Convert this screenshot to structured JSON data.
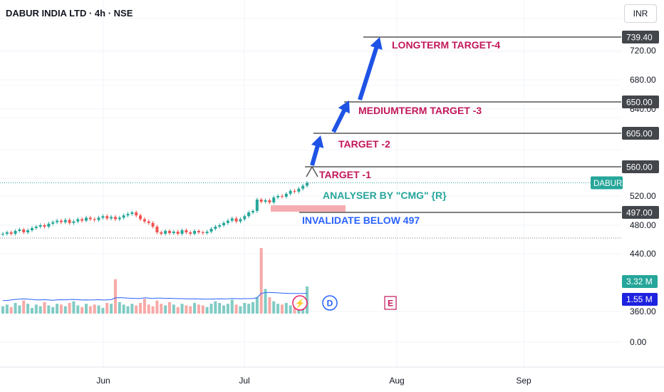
{
  "header": {
    "title": "DABUR INDIA LTD · 4h · NSE",
    "currency_button": "INR"
  },
  "colors": {
    "up": "#26a69a",
    "down": "#ef5350",
    "target_text": "#c2185b",
    "analyser_text": "#26a69a",
    "invalidate_text": "#2962ff",
    "arrow_blue": "#1e53e5",
    "level_line": "#555555",
    "price_tag_bg": "#43464b",
    "symbol_tag_bg": "#26a69a",
    "volume_ma": "#2962ff"
  },
  "event_markers": [
    {
      "name": "dividend-marker",
      "glyph": "⚡",
      "color": "#e91e63"
    },
    {
      "name": "d-marker",
      "glyph": "D",
      "color": "#2962ff"
    },
    {
      "name": "e-marker",
      "glyph": "E",
      "color": "#c2185b"
    }
  ],
  "chart_data": {
    "type": "candlestick",
    "symbol": "DABUR",
    "interval": "4h",
    "exchange": "NSE",
    "x_ticks": [
      "Jun",
      "Jul",
      "Aug",
      "Sep"
    ],
    "y_ticks": [
      0.0,
      360.0,
      440.0,
      480.0,
      520.0,
      640.0,
      680.0,
      720.0
    ],
    "ylim": [
      0,
      760
    ],
    "current_price_label": "DABUR",
    "close_path": [
      468,
      470,
      468,
      472,
      474,
      470,
      473,
      476,
      478,
      480,
      478,
      482,
      484,
      486,
      484,
      487,
      483,
      485,
      488,
      486,
      490,
      488,
      487,
      490,
      492,
      489,
      491,
      488,
      490,
      493,
      495,
      497,
      493,
      488,
      485,
      483,
      478,
      470,
      468,
      472,
      469,
      471,
      468,
      473,
      470,
      468,
      472,
      470,
      469,
      471,
      475,
      478,
      480,
      483,
      486,
      489,
      485,
      488,
      492,
      497,
      499,
      515,
      512,
      514,
      511,
      518,
      520,
      519,
      523,
      527,
      526,
      530,
      534,
      538
    ],
    "price_levels": [
      {
        "name": "longterm-target-4",
        "value": 739.4,
        "tag": "739.40",
        "label": "LONGTERM TARGET-4"
      },
      {
        "name": "mediumterm-target-3",
        "value": 650.0,
        "tag": "650.00",
        "label": "MEDIUMTERM TARGET -3"
      },
      {
        "name": "target-2",
        "value": 605.0,
        "tag": "605.00",
        "label": "TARGET -2"
      },
      {
        "name": "target-1",
        "value": 560.0,
        "tag": "560.00",
        "label": "TARGET -1"
      },
      {
        "name": "invalidate-level",
        "value": 497.0,
        "tag": "497.00",
        "label": "INVALIDATE BELOW 497"
      }
    ],
    "annotations": [
      "ANALYSER BY \"CMG\" {R}"
    ],
    "volume": {
      "last_volume_tag": "3.32 M",
      "volume_ma_tag": "1.55 M",
      "bars": [
        0.9,
        1.1,
        0.8,
        1.3,
        1.0,
        1.6,
        1.2,
        0.7,
        1.1,
        0.9,
        1.4,
        1.0,
        0.8,
        1.2,
        1.1,
        0.9,
        1.3,
        1.5,
        1.0,
        0.8,
        1.2,
        0.9,
        1.1,
        1.0,
        0.7,
        1.3,
        1.2,
        4.2,
        1.4,
        1.1,
        0.9,
        1.2,
        1.0,
        1.3,
        1.8,
        1.1,
        0.9,
        1.6,
        1.2,
        1.0,
        1.4,
        1.1,
        0.8,
        1.2,
        1.0,
        0.9,
        1.3,
        1.1,
        1.0,
        0.8,
        1.2,
        1.5,
        1.3,
        1.0,
        1.2,
        1.7,
        1.1,
        0.9,
        1.3,
        1.2,
        1.4,
        2.0,
        8.0,
        3.0,
        2.0,
        1.5,
        1.2,
        1.1,
        1.3,
        1.0,
        0.9,
        1.2,
        1.4,
        3.32
      ],
      "ma": [
        1.0,
        1.0,
        1.05,
        1.08,
        1.1,
        1.12,
        1.1,
        1.08,
        1.05,
        1.05,
        1.06,
        1.04,
        1.02,
        1.05,
        1.06,
        1.05,
        1.07,
        1.08,
        1.06,
        1.04,
        1.05,
        1.04,
        1.05,
        1.06,
        1.04,
        1.05,
        1.06,
        1.2,
        1.22,
        1.2,
        1.18,
        1.17,
        1.16,
        1.16,
        1.2,
        1.18,
        1.16,
        1.18,
        1.18,
        1.16,
        1.17,
        1.16,
        1.14,
        1.14,
        1.13,
        1.12,
        1.13,
        1.12,
        1.11,
        1.1,
        1.11,
        1.12,
        1.13,
        1.12,
        1.13,
        1.15,
        1.14,
        1.13,
        1.14,
        1.14,
        1.15,
        1.2,
        1.55,
        1.6,
        1.62,
        1.6,
        1.58,
        1.56,
        1.55,
        1.54,
        1.53,
        1.53,
        1.54,
        1.55
      ]
    }
  }
}
